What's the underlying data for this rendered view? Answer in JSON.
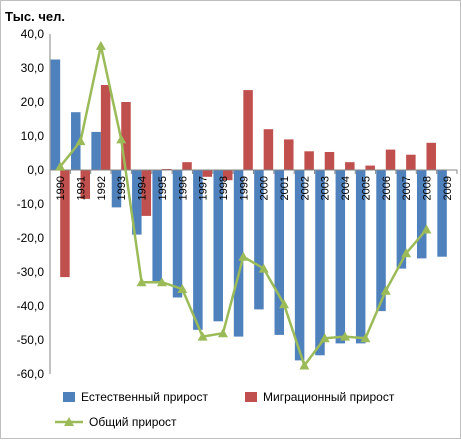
{
  "chart_data": {
    "type": "bar",
    "title": "",
    "unit_label": "Тыс. чел.",
    "categories": [
      "1990",
      "1991",
      "1992",
      "1993",
      "1994",
      "1995",
      "1996",
      "1997",
      "1998",
      "1999",
      "2000",
      "2001",
      "2002",
      "2003",
      "2004",
      "2005",
      "2006",
      "2007",
      "2008",
      "2009"
    ],
    "ylim": [
      -60,
      40
    ],
    "y_ticks": [
      "40,0",
      "30,0",
      "20,0",
      "10,0",
      "0,0",
      "-10,0",
      "-20,0",
      "-30,0",
      "-40,0",
      "-50,0",
      "-60,0"
    ],
    "grid": false,
    "legend_position": "bottom",
    "series": [
      {
        "name": "Естественный прирост",
        "kind": "bar",
        "color": "#4f81bd",
        "values": [
          32.5,
          17.0,
          11.2,
          -11.0,
          -19.0,
          -33.0,
          -37.5,
          -47.0,
          -44.5,
          -49.0,
          -41.0,
          -48.5,
          -56.0,
          -54.5,
          -51.0,
          -51.0,
          -41.5,
          -29.0,
          -26.0,
          -25.5
        ]
      },
      {
        "name": "Миграционный прирост",
        "kind": "bar",
        "color": "#c0504d",
        "values": [
          -31.5,
          -8.5,
          25.0,
          20.0,
          -13.5,
          0.3,
          2.3,
          -2.0,
          -3.0,
          23.5,
          12.0,
          9.0,
          5.5,
          5.3,
          2.3,
          1.3,
          6.0,
          4.5,
          8.0,
          null
        ]
      },
      {
        "name": "Общий прирост",
        "kind": "line",
        "color": "#9bbb59",
        "values": [
          1.0,
          8.5,
          36.5,
          9.0,
          -33.0,
          -33.0,
          -35.0,
          -49.0,
          -48.0,
          -25.5,
          -29.0,
          -39.5,
          -57.5,
          -49.5,
          -49.0,
          -49.5,
          -35.5,
          -24.5,
          -17.5,
          null
        ]
      }
    ]
  }
}
